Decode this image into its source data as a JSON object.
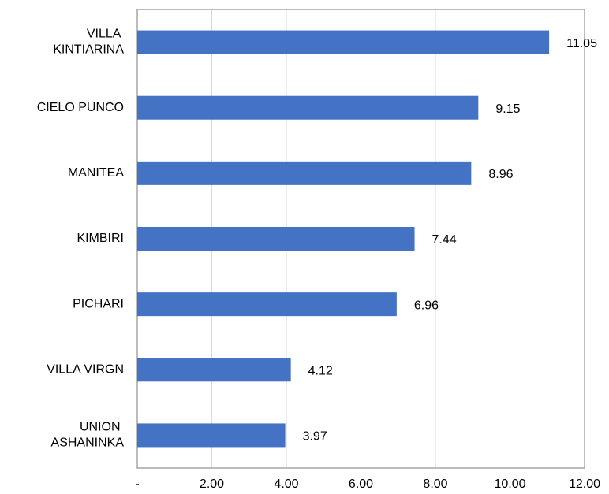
{
  "chart_data": {
    "type": "bar",
    "orientation": "horizontal",
    "categories": [
      "VILLA KINTIARINA",
      "CIELO PUNCO",
      "MANITEA",
      "KIMBIRI",
      "PICHARI",
      "VILLA VIRGN",
      "UNION ASHANINKA"
    ],
    "values": [
      11.05,
      9.15,
      8.96,
      7.44,
      6.96,
      4.12,
      3.97
    ],
    "color": "#4472c4",
    "xlim": [
      0,
      12
    ],
    "xticks": [
      {
        "value": 0,
        "label": "-"
      },
      {
        "value": 2,
        "label": "2.00"
      },
      {
        "value": 4,
        "label": "4.00"
      },
      {
        "value": 6,
        "label": "6.00"
      },
      {
        "value": 8,
        "label": "8.00"
      },
      {
        "value": 10,
        "label": "10.00"
      },
      {
        "value": 12,
        "label": "12.00"
      }
    ],
    "grid": true
  }
}
